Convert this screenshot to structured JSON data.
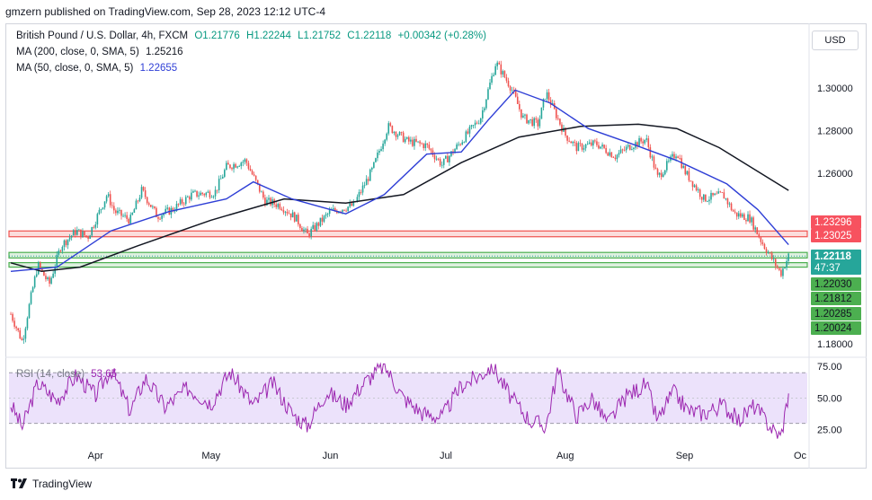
{
  "header": {
    "text": "gmzern published on TradingView.com, Sep 28, 2023 12:12 UTC-4"
  },
  "legend": {
    "symbol": "British Pound / U.S. Dollar, 4h, FXCM",
    "o": "O1.21776",
    "h": "H1.22244",
    "l": "L1.21752",
    "c": "C1.22118",
    "change": "+0.00342 (+0.28%)",
    "ma200_label": "MA (200, close, 0, SMA, 5)",
    "ma200_value": "1.25216",
    "ma50_label": "MA (50, close, 0, SMA, 5)",
    "ma50_value": "1.22655"
  },
  "currency_button": "USD",
  "rsi_legend": {
    "label": "RSI (14, close)",
    "value": "53.65"
  },
  "footer": {
    "brand": "TradingView"
  },
  "colors": {
    "up": "#26a69a",
    "down": "#ef5350",
    "ma50": "#2f3fd6",
    "ma200": "#131722",
    "rsi": "#9c27b0",
    "rsi_band": "#e9ddfa",
    "support": "#4caf50",
    "resistance": "#ef5350"
  },
  "chart_data": [
    {
      "type": "candlestick",
      "symbol": "GBPUSD",
      "timeframe": "4h",
      "x_tick_labels": [
        "Apr",
        "May",
        "Jun",
        "Jul",
        "Aug",
        "Sep",
        "Oc"
      ],
      "y_tick_labels": [
        "1.30000",
        "1.28000",
        "1.26000",
        "1.18000"
      ],
      "ylim": [
        1.175,
        1.316
      ],
      "resistance_zone": [
        1.23025,
        1.23296
      ],
      "support_zone_1": [
        1.2203,
        1.2203
      ],
      "support_zone_2": [
        1.20285,
        1.2181
      ],
      "price_labels": [
        {
          "text": "1.23296",
          "kind": "resistance"
        },
        {
          "text": "1.23025",
          "kind": "resistance"
        },
        {
          "text": "1.22118",
          "kind": "last"
        },
        {
          "text": "47:37",
          "kind": "countdown"
        },
        {
          "text": "1.22030",
          "kind": "support"
        },
        {
          "text": "1.21812",
          "kind": "support"
        },
        {
          "text": "1.20285",
          "kind": "support"
        },
        {
          "text": "1.20024",
          "kind": "support"
        }
      ],
      "price_path": [
        {
          "x": "2023-03-10",
          "y": 1.194
        },
        {
          "x": "2023-03-13",
          "y": 1.181
        },
        {
          "x": "2023-03-15",
          "y": 1.2
        },
        {
          "x": "2023-03-17",
          "y": 1.217
        },
        {
          "x": "2023-03-20",
          "y": 1.208
        },
        {
          "x": "2023-03-23",
          "y": 1.226
        },
        {
          "x": "2023-03-27",
          "y": 1.233
        },
        {
          "x": "2023-03-30",
          "y": 1.23
        },
        {
          "x": "2023-04-04",
          "y": 1.25
        },
        {
          "x": "2023-04-06",
          "y": 1.242
        },
        {
          "x": "2023-04-10",
          "y": 1.238
        },
        {
          "x": "2023-04-13",
          "y": 1.252
        },
        {
          "x": "2023-04-17",
          "y": 1.24
        },
        {
          "x": "2023-04-21",
          "y": 1.243
        },
        {
          "x": "2023-04-26",
          "y": 1.25
        },
        {
          "x": "2023-05-02",
          "y": 1.251
        },
        {
          "x": "2023-05-05",
          "y": 1.263
        },
        {
          "x": "2023-05-10",
          "y": 1.266
        },
        {
          "x": "2023-05-15",
          "y": 1.247
        },
        {
          "x": "2023-05-19",
          "y": 1.245
        },
        {
          "x": "2023-05-23",
          "y": 1.239
        },
        {
          "x": "2023-05-26",
          "y": 1.231
        },
        {
          "x": "2023-06-01",
          "y": 1.242
        },
        {
          "x": "2023-06-07",
          "y": 1.245
        },
        {
          "x": "2023-06-12",
          "y": 1.262
        },
        {
          "x": "2023-06-16",
          "y": 1.282
        },
        {
          "x": "2023-06-21",
          "y": 1.275
        },
        {
          "x": "2023-06-26",
          "y": 1.273
        },
        {
          "x": "2023-06-30",
          "y": 1.264
        },
        {
          "x": "2023-07-05",
          "y": 1.275
        },
        {
          "x": "2023-07-10",
          "y": 1.286
        },
        {
          "x": "2023-07-14",
          "y": 1.312
        },
        {
          "x": "2023-07-18",
          "y": 1.3
        },
        {
          "x": "2023-07-21",
          "y": 1.286
        },
        {
          "x": "2023-07-25",
          "y": 1.283
        },
        {
          "x": "2023-07-27",
          "y": 1.298
        },
        {
          "x": "2023-08-01",
          "y": 1.278
        },
        {
          "x": "2023-08-04",
          "y": 1.272
        },
        {
          "x": "2023-08-09",
          "y": 1.274
        },
        {
          "x": "2023-08-14",
          "y": 1.268
        },
        {
          "x": "2023-08-18",
          "y": 1.273
        },
        {
          "x": "2023-08-22",
          "y": 1.276
        },
        {
          "x": "2023-08-25",
          "y": 1.258
        },
        {
          "x": "2023-08-30",
          "y": 1.27
        },
        {
          "x": "2023-09-01",
          "y": 1.261
        },
        {
          "x": "2023-09-06",
          "y": 1.248
        },
        {
          "x": "2023-09-11",
          "y": 1.25
        },
        {
          "x": "2023-09-14",
          "y": 1.241
        },
        {
          "x": "2023-09-18",
          "y": 1.239
        },
        {
          "x": "2023-09-21",
          "y": 1.228
        },
        {
          "x": "2023-09-26",
          "y": 1.213
        },
        {
          "x": "2023-09-28",
          "y": 1.2212
        }
      ],
      "ma50_path": [
        {
          "x": "2023-03-10",
          "y": 1.214
        },
        {
          "x": "2023-03-22",
          "y": 1.216
        },
        {
          "x": "2023-04-05",
          "y": 1.233
        },
        {
          "x": "2023-04-20",
          "y": 1.242
        },
        {
          "x": "2023-05-05",
          "y": 1.248
        },
        {
          "x": "2023-05-12",
          "y": 1.256
        },
        {
          "x": "2023-05-22",
          "y": 1.248
        },
        {
          "x": "2023-06-05",
          "y": 1.241
        },
        {
          "x": "2023-06-15",
          "y": 1.25
        },
        {
          "x": "2023-06-26",
          "y": 1.269
        },
        {
          "x": "2023-07-05",
          "y": 1.27
        },
        {
          "x": "2023-07-12",
          "y": 1.285
        },
        {
          "x": "2023-07-19",
          "y": 1.299
        },
        {
          "x": "2023-07-28",
          "y": 1.293
        },
        {
          "x": "2023-08-07",
          "y": 1.281
        },
        {
          "x": "2023-08-18",
          "y": 1.274
        },
        {
          "x": "2023-08-30",
          "y": 1.266
        },
        {
          "x": "2023-09-12",
          "y": 1.255
        },
        {
          "x": "2023-09-20",
          "y": 1.243
        },
        {
          "x": "2023-09-28",
          "y": 1.2265
        }
      ],
      "ma200_path": [
        {
          "x": "2023-03-10",
          "y": 1.218
        },
        {
          "x": "2023-03-18",
          "y": 1.214
        },
        {
          "x": "2023-03-28",
          "y": 1.216
        },
        {
          "x": "2023-04-12",
          "y": 1.226
        },
        {
          "x": "2023-05-01",
          "y": 1.238
        },
        {
          "x": "2023-05-20",
          "y": 1.248
        },
        {
          "x": "2023-06-05",
          "y": 1.246
        },
        {
          "x": "2023-06-20",
          "y": 1.25
        },
        {
          "x": "2023-07-05",
          "y": 1.265
        },
        {
          "x": "2023-07-20",
          "y": 1.277
        },
        {
          "x": "2023-08-05",
          "y": 1.282
        },
        {
          "x": "2023-08-20",
          "y": 1.283
        },
        {
          "x": "2023-08-30",
          "y": 1.281
        },
        {
          "x": "2023-09-10",
          "y": 1.272
        },
        {
          "x": "2023-09-28",
          "y": 1.252
        }
      ]
    },
    {
      "type": "line",
      "name": "RSI (14, close)",
      "ylim": [
        17,
        78
      ],
      "y_tick_labels": [
        "75.00",
        "50.00",
        "25.00"
      ],
      "band": [
        30,
        70
      ],
      "rsi_path": [
        {
          "x": "2023-03-10",
          "y": 45
        },
        {
          "x": "2023-03-13",
          "y": 27
        },
        {
          "x": "2023-03-17",
          "y": 62
        },
        {
          "x": "2023-03-22",
          "y": 48
        },
        {
          "x": "2023-03-27",
          "y": 68
        },
        {
          "x": "2023-04-01",
          "y": 52
        },
        {
          "x": "2023-04-05",
          "y": 73
        },
        {
          "x": "2023-04-10",
          "y": 40
        },
        {
          "x": "2023-04-14",
          "y": 66
        },
        {
          "x": "2023-04-19",
          "y": 43
        },
        {
          "x": "2023-04-25",
          "y": 58
        },
        {
          "x": "2023-05-01",
          "y": 46
        },
        {
          "x": "2023-05-06",
          "y": 71
        },
        {
          "x": "2023-05-12",
          "y": 44
        },
        {
          "x": "2023-05-17",
          "y": 62
        },
        {
          "x": "2023-05-22",
          "y": 38
        },
        {
          "x": "2023-05-26",
          "y": 28
        },
        {
          "x": "2023-05-31",
          "y": 55
        },
        {
          "x": "2023-06-05",
          "y": 45
        },
        {
          "x": "2023-06-10",
          "y": 63
        },
        {
          "x": "2023-06-15",
          "y": 76
        },
        {
          "x": "2023-06-20",
          "y": 50
        },
        {
          "x": "2023-06-25",
          "y": 38
        },
        {
          "x": "2023-06-30",
          "y": 35
        },
        {
          "x": "2023-07-05",
          "y": 60
        },
        {
          "x": "2023-07-10",
          "y": 68
        },
        {
          "x": "2023-07-13",
          "y": 76
        },
        {
          "x": "2023-07-18",
          "y": 50
        },
        {
          "x": "2023-07-23",
          "y": 32
        },
        {
          "x": "2023-07-27",
          "y": 28
        },
        {
          "x": "2023-07-30",
          "y": 71
        },
        {
          "x": "2023-08-04",
          "y": 36
        },
        {
          "x": "2023-08-08",
          "y": 50
        },
        {
          "x": "2023-08-12",
          "y": 30
        },
        {
          "x": "2023-08-17",
          "y": 52
        },
        {
          "x": "2023-08-22",
          "y": 61
        },
        {
          "x": "2023-08-25",
          "y": 32
        },
        {
          "x": "2023-08-29",
          "y": 55
        },
        {
          "x": "2023-09-02",
          "y": 40
        },
        {
          "x": "2023-09-06",
          "y": 38
        },
        {
          "x": "2023-09-11",
          "y": 45
        },
        {
          "x": "2023-09-15",
          "y": 32
        },
        {
          "x": "2023-09-19",
          "y": 44
        },
        {
          "x": "2023-09-24",
          "y": 25
        },
        {
          "x": "2023-09-26",
          "y": 19
        },
        {
          "x": "2023-09-28",
          "y": 53.65
        }
      ]
    }
  ]
}
